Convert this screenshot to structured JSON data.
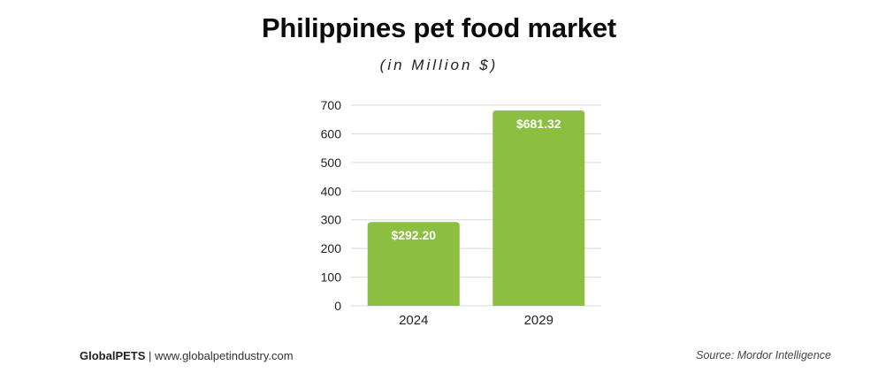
{
  "chart_data": {
    "type": "bar",
    "title": "Philippines pet food market",
    "subtitle": "(in Million $)",
    "categories": [
      "2024",
      "2029"
    ],
    "values": [
      292.2,
      681.32
    ],
    "data_labels": [
      "$292.20",
      "$681.32"
    ],
    "ylim": [
      0,
      700
    ],
    "yticks": [
      0,
      100,
      200,
      300,
      400,
      500,
      600,
      700
    ],
    "grid": true,
    "legend": "none",
    "bar_color": "#8cbf3f",
    "grid_color": "#d9d9d9"
  },
  "footer": {
    "brand": "GlobalPETS",
    "separator": " | ",
    "url": "www.globalpetindustry.com",
    "source": "Source: Mordor Intelligence"
  }
}
